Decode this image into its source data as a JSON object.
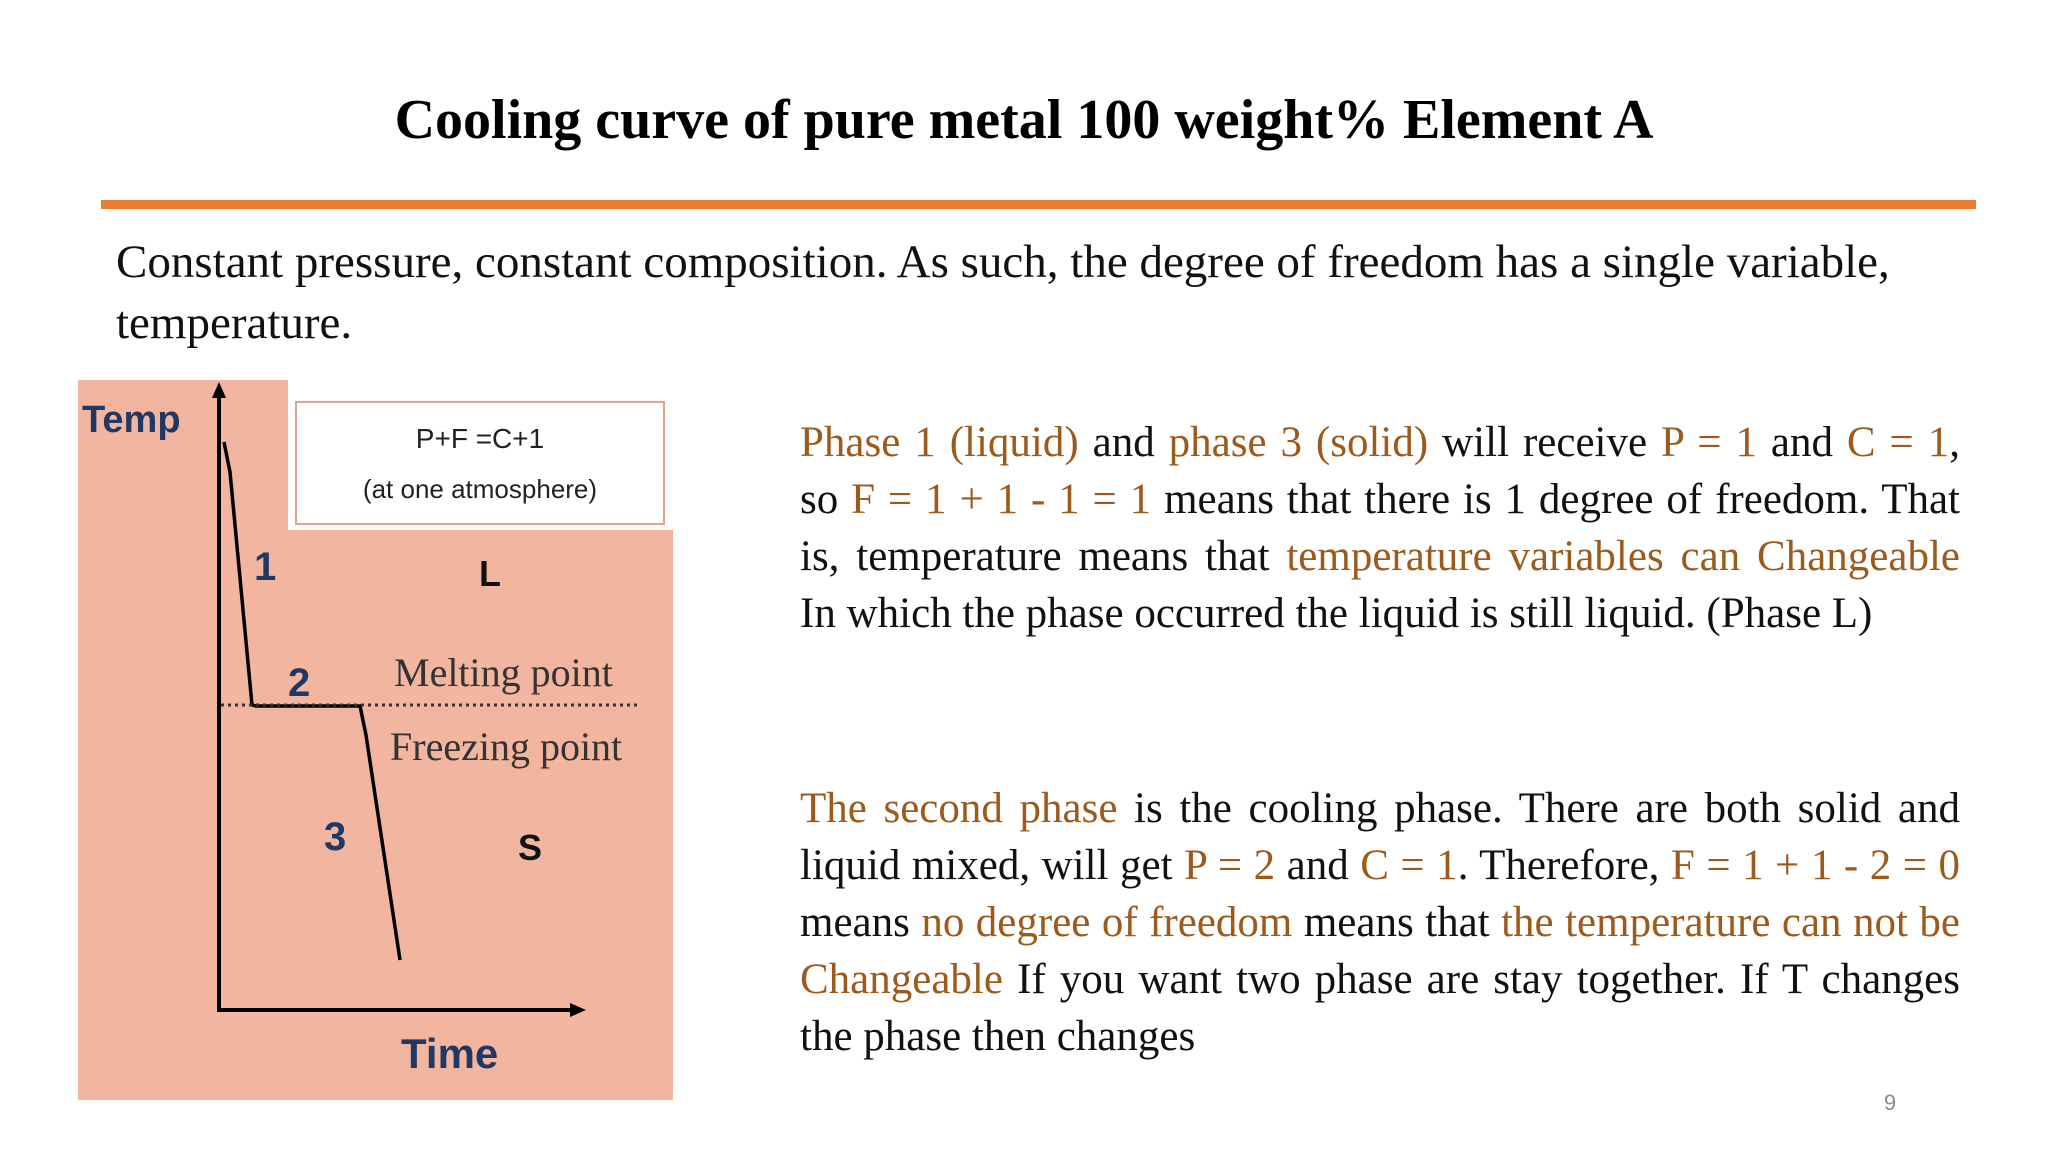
{
  "slide": {
    "title": "Cooling curve of pure metal 100 weight% Element A",
    "intro": "Constant pressure, constant composition. As such, the degree of freedom has a single variable, temperature.",
    "page_number": "9"
  },
  "figure": {
    "y_label": "Temp",
    "x_label": "Time",
    "formula": "P+F =C+1",
    "formula_note": "(at one atmosphere)",
    "region_upper": "L",
    "region_lower": "S",
    "segment_1": "1",
    "segment_2": "2",
    "segment_3": "3",
    "melting_point": "Melting point",
    "freezing_point": "Freezing point",
    "colors": {
      "fill": "#F2B5A0",
      "box_border": "#E9A08A",
      "axis": "#000000",
      "numbers": "#1F3864"
    }
  },
  "paragraph1": [
    {
      "t": "Phase 1 (liquid)",
      "hl": true
    },
    {
      "t": " and ",
      "hl": false
    },
    {
      "t": "phase 3 (solid)",
      "hl": true
    },
    {
      "t": " will receive ",
      "hl": false
    },
    {
      "t": "P = 1",
      "hl": true
    },
    {
      "t": " and ",
      "hl": false
    },
    {
      "t": "C = 1",
      "hl": true
    },
    {
      "t": ", so ",
      "hl": false
    },
    {
      "t": "F = 1 + 1 - 1 = 1",
      "hl": true
    },
    {
      "t": " means that there is 1 degree of freedom. That is, temperature means that ",
      "hl": false
    },
    {
      "t": "temperature variables can Changeable",
      "hl": true
    },
    {
      "t": " In which the phase occurred the liquid is still liquid. (Phase L)",
      "hl": false
    }
  ],
  "paragraph2": [
    {
      "t": "The second phase",
      "hl": true
    },
    {
      "t": " is the cooling phase. There are both solid and liquid mixed, will get ",
      "hl": false
    },
    {
      "t": "P = 2",
      "hl": true
    },
    {
      "t": " and ",
      "hl": false
    },
    {
      "t": "C = 1",
      "hl": true
    },
    {
      "t": ". Therefore, ",
      "hl": false
    },
    {
      "t": "F = 1 + 1 - 2 = 0",
      "hl": true
    },
    {
      "t": " means ",
      "hl": false
    },
    {
      "t": "no degree of freedom",
      "hl": true
    },
    {
      "t": " means that ",
      "hl": false
    },
    {
      "t": "the temperature can not be Changeable",
      "hl": true
    },
    {
      "t": " If you want two phase are stay together. If T changes the phase then changes",
      "hl": false
    }
  ],
  "colors": {
    "accent_rule": "#ED7D31",
    "highlight_text": "#9C5A1C"
  }
}
